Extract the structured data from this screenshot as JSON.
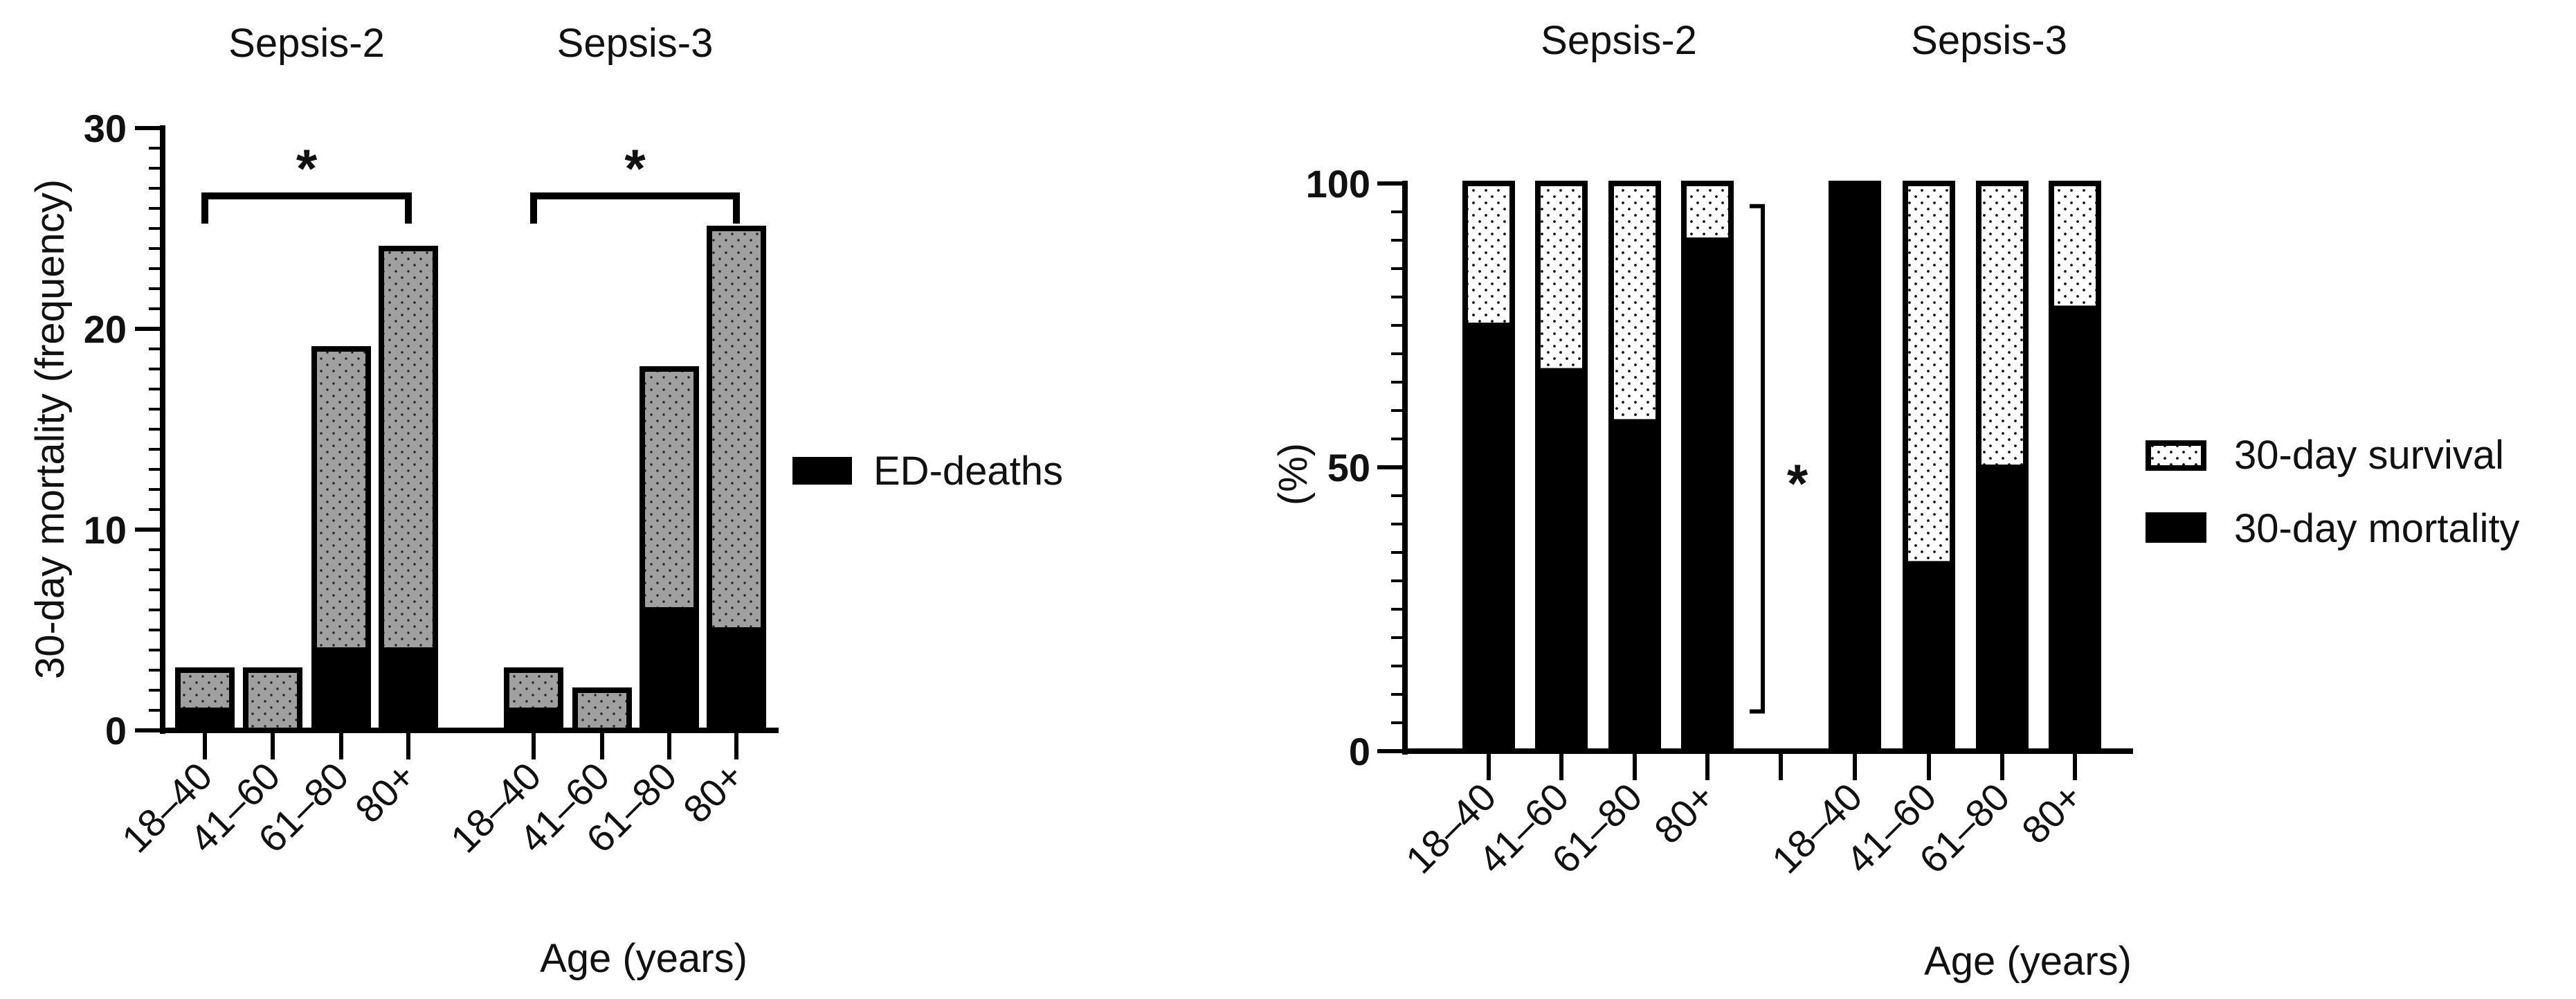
{
  "chart_data": [
    {
      "type": "bar",
      "stacked": true,
      "ylabel": "30-day mortality (frequency)",
      "xlabel": "Age (years)",
      "ylim": [
        0,
        30
      ],
      "yticks": [
        "0",
        "10",
        "20",
        "30"
      ],
      "groups": [
        {
          "title": "Sepsis-2",
          "categories": [
            "18–40",
            "41–60",
            "61–80",
            "80+"
          ],
          "ed_deaths": [
            1,
            0,
            4,
            4
          ],
          "totals": [
            3,
            3,
            19,
            24
          ],
          "significance": "*"
        },
        {
          "title": "Sepsis-3",
          "categories": [
            "18–40",
            "41–60",
            "61–80",
            "80+"
          ],
          "ed_deaths": [
            1,
            0,
            6,
            5
          ],
          "totals": [
            3,
            2,
            18,
            25
          ],
          "significance": "*"
        }
      ],
      "legend": [
        "ED-deaths"
      ],
      "colors": {
        "ed_deaths": "#000000",
        "other": "#a0a0a0",
        "outline": "#000000"
      }
    },
    {
      "type": "bar",
      "stacked": true,
      "ylabel": "(%)",
      "xlabel": "Age (years)",
      "ylim": [
        0,
        100
      ],
      "yticks": [
        "0",
        "50",
        "100"
      ],
      "groups": [
        {
          "title": "Sepsis-2",
          "categories": [
            "18–40",
            "41–60",
            "61–80",
            "80+"
          ],
          "mortality": [
            75,
            67,
            58,
            90
          ]
        },
        {
          "title": "Sepsis-3",
          "categories": [
            "18–40",
            "41–60",
            "61–80",
            "80+"
          ],
          "mortality": [
            100,
            33,
            50,
            78
          ]
        }
      ],
      "significance": "*",
      "legend": [
        "30-day survival",
        "30-day mortality"
      ],
      "colors": {
        "mortality": "#000000",
        "survival": "#ffffff",
        "outline": "#000000"
      }
    }
  ]
}
